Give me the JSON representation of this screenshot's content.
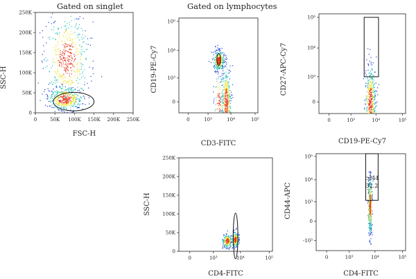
{
  "headers": {
    "left": "Gated on singlet",
    "center": "Gated on lymphocytes"
  },
  "colors": {
    "low": "#1f3fd6",
    "mid": "#29c5b9",
    "high": "#f2e63a",
    "peak": "#e8361e",
    "gate": "#111111"
  },
  "chart_data": [
    {
      "type": "scatter",
      "panel": "p1",
      "header": "Gated on singlet",
      "xlabel": "FSC-H",
      "ylabel": "SSC-H",
      "xscale": "linear",
      "yscale": "linear",
      "xlim": [
        0,
        250000
      ],
      "ylim": [
        0,
        250000
      ],
      "xticks": [
        "0",
        "50K",
        "100K",
        "150K",
        "200K",
        "250K"
      ],
      "yticks": [
        "0",
        "50K",
        "100K",
        "150K",
        "200K",
        "250K"
      ],
      "populations": [
        {
          "cx": 75000,
          "cy": 35000,
          "sx": 22000,
          "sy": 14000,
          "n": 420
        },
        {
          "cx": 80000,
          "cy": 135000,
          "sx": 28000,
          "sy": 55000,
          "n": 520
        }
      ],
      "gate": {
        "shape": "ellipse",
        "cx": 98000,
        "cy": 28000,
        "rx": 52000,
        "ry": 23000
      }
    },
    {
      "type": "scatter",
      "panel": "p2",
      "header": "Gated on lymphocytes",
      "xlabel": "CD3-FITC",
      "ylabel": "CD19-PE-Cy7",
      "xscale": "biexponential",
      "yscale": "biexponential",
      "xticks": [
        "0",
        "10³",
        "10⁴",
        "10⁵"
      ],
      "yticks": [
        "0",
        "10³",
        "10⁴",
        "10⁵"
      ],
      "populations": [
        {
          "cx": 3000,
          "cy": 4500,
          "sx": 900,
          "sy": 2200,
          "n": 330
        },
        {
          "cx": 3000,
          "cy": 0,
          "sx": 700,
          "sy": 500,
          "n": 110
        },
        {
          "cx": 6200,
          "cy": 0,
          "sx": 1500,
          "sy": 500,
          "n": 430
        }
      ],
      "gate": {
        "shape": "ellipse",
        "cx": 3050,
        "cy": 4800,
        "rx": 650,
        "ry": 2900
      }
    },
    {
      "type": "scatter",
      "panel": "p3",
      "xlabel": "CD19-PE-Cy7",
      "ylabel": "CD27-APC-Cy7",
      "xscale": "biexponential",
      "yscale": "biexponential",
      "xticks": [
        "0",
        "10³",
        "10⁴",
        "10⁵"
      ],
      "yticks": [
        "0",
        "10³",
        "10⁴",
        "10⁵"
      ],
      "populations": [
        {
          "cx": 6000,
          "cy": 0,
          "sx": 1500,
          "sy": 500,
          "n": 480
        }
      ],
      "gate": {
        "shape": "rect",
        "x0": 3500,
        "x1": 12500,
        "y0": 1000,
        "y1": 100000
      }
    },
    {
      "type": "scatter",
      "panel": "p4",
      "xlabel": "CD4-FITC",
      "ylabel": "SSC-H",
      "xscale": "biexponential",
      "yscale": "linear",
      "ylim": [
        0,
        250000
      ],
      "xticks": [
        "0",
        "10³",
        "10⁴",
        "10⁵"
      ],
      "yticks": [
        "0",
        "50K",
        "100K",
        "150K",
        "200K",
        "250K"
      ],
      "populations": [
        {
          "cx": 3300,
          "cy": 28000,
          "sx": 700,
          "sy": 9000,
          "n": 230
        },
        {
          "cx": 6400,
          "cy": 32000,
          "sx": 900,
          "sy": 10000,
          "n": 270
        }
      ],
      "gate": {
        "shape": "ellipse",
        "cx": 6700,
        "cy": 41000,
        "rx": 1400,
        "ry": 61000
      }
    },
    {
      "type": "scatter",
      "panel": "p5",
      "xlabel": "CD4-FITC",
      "ylabel": "CD44-APC",
      "xscale": "biexponential",
      "yscale": "biexponential",
      "xticks": [
        "0",
        "10³",
        "10⁴",
        "10⁵"
      ],
      "yticks": [
        "-10³",
        "0",
        "10³",
        "10⁴",
        "10⁵"
      ],
      "populations": [
        {
          "cx": 6400,
          "cy": 700,
          "sx": 500,
          "sy": 2600,
          "n": 420
        }
      ],
      "gate": {
        "shape": "rect",
        "x0": 4500,
        "x1": 13000,
        "y0": 1200,
        "y1": 160000,
        "label": "cd44",
        "value": "32.2"
      }
    }
  ]
}
